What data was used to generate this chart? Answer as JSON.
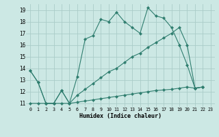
{
  "xlabel": "Humidex (Indice chaleur)",
  "bg_color": "#cce8e4",
  "grid_color": "#aaccc8",
  "line_color": "#2e7d6e",
  "xlim": [
    -0.5,
    23.5
  ],
  "ylim": [
    10.7,
    19.5
  ],
  "xticks": [
    0,
    1,
    2,
    3,
    4,
    5,
    6,
    7,
    8,
    9,
    10,
    11,
    12,
    13,
    14,
    15,
    16,
    17,
    18,
    19,
    20,
    21,
    22,
    23
  ],
  "yticks": [
    11,
    12,
    13,
    14,
    15,
    16,
    17,
    18,
    19
  ],
  "line1_x": [
    0,
    1,
    2,
    3,
    4,
    5,
    6,
    7,
    8,
    9,
    10,
    11,
    12,
    13,
    14,
    15,
    16,
    17,
    18,
    19,
    20,
    21,
    22
  ],
  "line1_y": [
    13.8,
    12.8,
    11.0,
    11.0,
    12.1,
    11.0,
    13.3,
    16.5,
    16.8,
    18.2,
    18.0,
    18.8,
    18.0,
    17.5,
    17.0,
    19.2,
    18.5,
    18.3,
    17.5,
    16.0,
    14.3,
    12.3,
    12.4
  ],
  "line2_x": [
    0,
    1,
    2,
    3,
    4,
    5,
    6,
    7,
    8,
    9,
    10,
    11,
    12,
    13,
    14,
    15,
    16,
    17,
    18,
    19,
    20,
    21,
    22
  ],
  "line2_y": [
    13.8,
    12.8,
    11.0,
    11.0,
    12.1,
    11.0,
    11.7,
    12.2,
    12.7,
    13.2,
    13.7,
    14.0,
    14.5,
    15.0,
    15.3,
    15.8,
    16.2,
    16.6,
    17.0,
    17.5,
    16.0,
    12.3,
    12.4
  ],
  "line3_x": [
    0,
    1,
    2,
    3,
    4,
    5,
    6,
    7,
    8,
    9,
    10,
    11,
    12,
    13,
    14,
    15,
    16,
    17,
    18,
    19,
    20,
    21,
    22
  ],
  "line3_y": [
    11.0,
    11.0,
    11.0,
    11.0,
    11.0,
    11.0,
    11.1,
    11.2,
    11.3,
    11.4,
    11.5,
    11.6,
    11.7,
    11.8,
    11.9,
    12.0,
    12.1,
    12.15,
    12.2,
    12.3,
    12.4,
    12.3,
    12.4
  ]
}
